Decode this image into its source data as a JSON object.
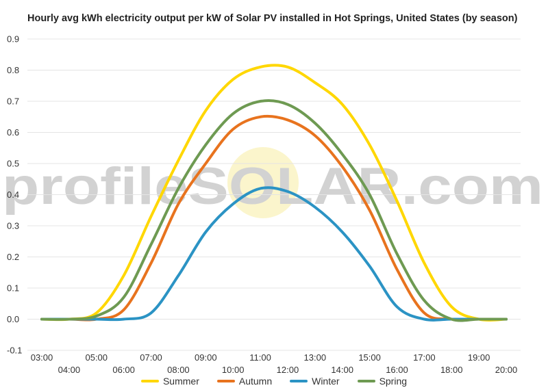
{
  "chart_data": {
    "type": "line",
    "title": "Hourly avg kWh electricity output per kW of Solar PV installed in Hot Springs, United States (by season)",
    "xlabel": "",
    "ylabel": "",
    "x": [
      "03:00",
      "04:00",
      "05:00",
      "06:00",
      "07:00",
      "08:00",
      "09:00",
      "10:00",
      "11:00",
      "12:00",
      "13:00",
      "14:00",
      "15:00",
      "16:00",
      "17:00",
      "18:00",
      "19:00",
      "20:00"
    ],
    "ylim": [
      -0.1,
      0.9
    ],
    "yticks": [
      "0.9",
      "0.8",
      "0.7",
      "0.6",
      "0.5",
      "0.4",
      "0.3",
      "0.2",
      "0.1",
      "0.0",
      "-0.1"
    ],
    "grid": true,
    "legend_position": "bottom",
    "watermark": "profileSOLAR.com",
    "series": [
      {
        "name": "Summer",
        "color": "#ffd700",
        "values": [
          0.0,
          0.0,
          0.02,
          0.14,
          0.33,
          0.51,
          0.67,
          0.77,
          0.81,
          0.81,
          0.76,
          0.69,
          0.56,
          0.38,
          0.18,
          0.04,
          0.0,
          0.0
        ]
      },
      {
        "name": "Autumn",
        "color": "#e8731e",
        "values": [
          0.0,
          0.0,
          0.0,
          0.03,
          0.18,
          0.37,
          0.5,
          0.61,
          0.65,
          0.64,
          0.59,
          0.49,
          0.35,
          0.16,
          0.02,
          0.0,
          0.0,
          0.0
        ]
      },
      {
        "name": "Winter",
        "color": "#2b93c4",
        "values": [
          0.0,
          0.0,
          0.0,
          0.0,
          0.02,
          0.14,
          0.28,
          0.37,
          0.42,
          0.41,
          0.36,
          0.28,
          0.17,
          0.04,
          0.0,
          0.0,
          0.0,
          0.0
        ]
      },
      {
        "name": "Spring",
        "color": "#6e9a52",
        "values": [
          0.0,
          0.0,
          0.01,
          0.07,
          0.24,
          0.42,
          0.56,
          0.66,
          0.7,
          0.69,
          0.63,
          0.53,
          0.4,
          0.21,
          0.06,
          0.0,
          0.0,
          0.0
        ]
      }
    ]
  }
}
